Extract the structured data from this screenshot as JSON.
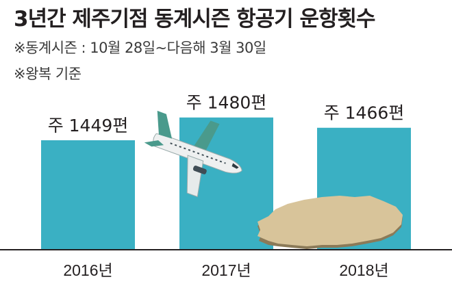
{
  "title": "3년간 제주기점 동계시즌 항공기 운항횟수",
  "notes": [
    "※동계시즌 : 10월 28일~다음해 3월 30일",
    "※왕복 기준"
  ],
  "chart_data": {
    "type": "bar",
    "title": "3년간 제주기점 동계시즌 항공기 운항횟수",
    "categories": [
      "2016년",
      "2017년",
      "2018년"
    ],
    "values": [
      1449,
      1480,
      1466
    ],
    "data_labels": [
      "주 1449편",
      "주 1480편",
      "주 1466편"
    ],
    "xlabel": "",
    "ylabel": "",
    "grid": false,
    "bar_color": "#3ab0c3"
  },
  "colors": {
    "bar": "#3ab0c3",
    "axis": "#231f20",
    "island": "#d8c49a"
  },
  "icons": [
    "airplane-illustration",
    "jeju-island-illustration"
  ]
}
